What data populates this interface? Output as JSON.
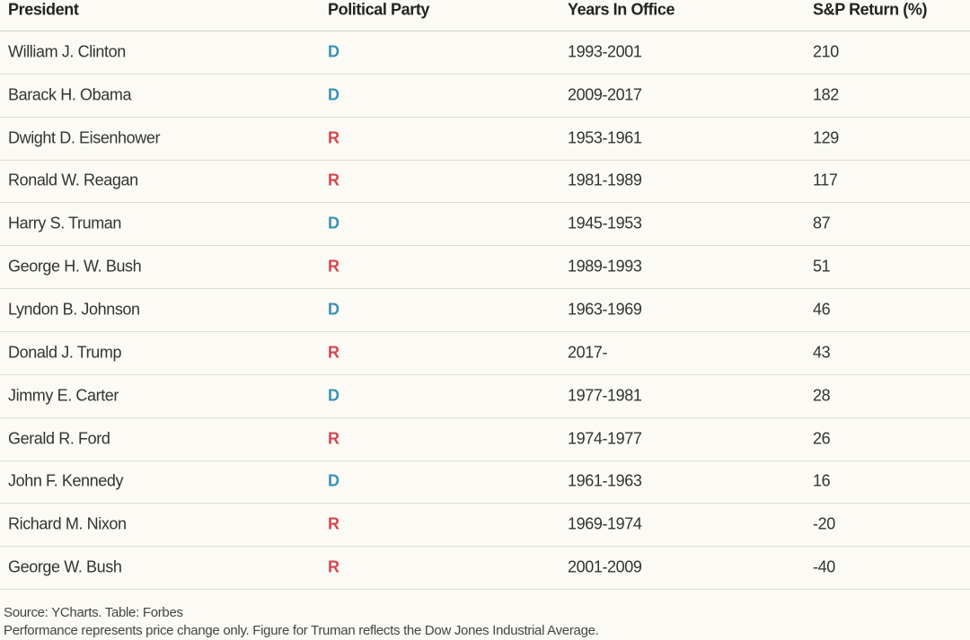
{
  "table": {
    "header": [
      "President",
      "Political Party",
      "Years In Office",
      "S&P Return (%)"
    ],
    "rows": [
      [
        "William J. Clinton",
        "D",
        "1993-2001",
        210
      ],
      [
        "Barack H. Obama",
        "D",
        "2009-2017",
        182
      ],
      [
        "Dwight D. Eisenhower",
        "R",
        "1953-1961",
        129
      ],
      [
        "Ronald W. Reagan",
        "R",
        "1981-1989",
        117
      ],
      [
        "Harry S. Truman",
        "D",
        "1945-1953",
        87
      ],
      [
        "George H. W. Bush",
        "R",
        "1989-1993",
        51
      ],
      [
        "Lyndon B. Johnson",
        "D",
        "1963-1969",
        46
      ],
      [
        "Donald J. Trump",
        "R",
        "2017-",
        43
      ],
      [
        "Jimmy E. Carter",
        "D",
        "1977-1981",
        28
      ],
      [
        "Gerald R. Ford",
        "R",
        "1974-1977",
        26
      ],
      [
        "John F. Kennedy",
        "D",
        "1961-1963",
        16
      ],
      [
        "Richard M. Nixon",
        "R",
        "1969-1974",
        -20
      ],
      [
        "George W. Bush",
        "R",
        "2001-2009",
        -40
      ]
    ],
    "party_colors": {
      "D": "#3b93b4",
      "R": "#d5474f"
    }
  },
  "footer": {
    "source": "Source: YCharts. Table: Forbes",
    "note": "Performance represents price change only. Figure for Truman reflects the Dow Jones Industrial Average."
  }
}
